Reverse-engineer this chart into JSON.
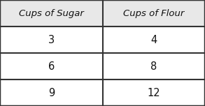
{
  "headers": [
    "Cups of Sugar",
    "Cups of Flour"
  ],
  "rows": [
    [
      "3",
      "4"
    ],
    [
      "6",
      "8"
    ],
    [
      "9",
      "12"
    ]
  ],
  "outer_bg": "#ffffff",
  "header_bg": "#e8e8e8",
  "cell_bg": "#ffffff",
  "border_color": "#333333",
  "header_fontsize": 9.5,
  "cell_fontsize": 10.5,
  "border_lw": 1.5,
  "col_split": 0.5
}
